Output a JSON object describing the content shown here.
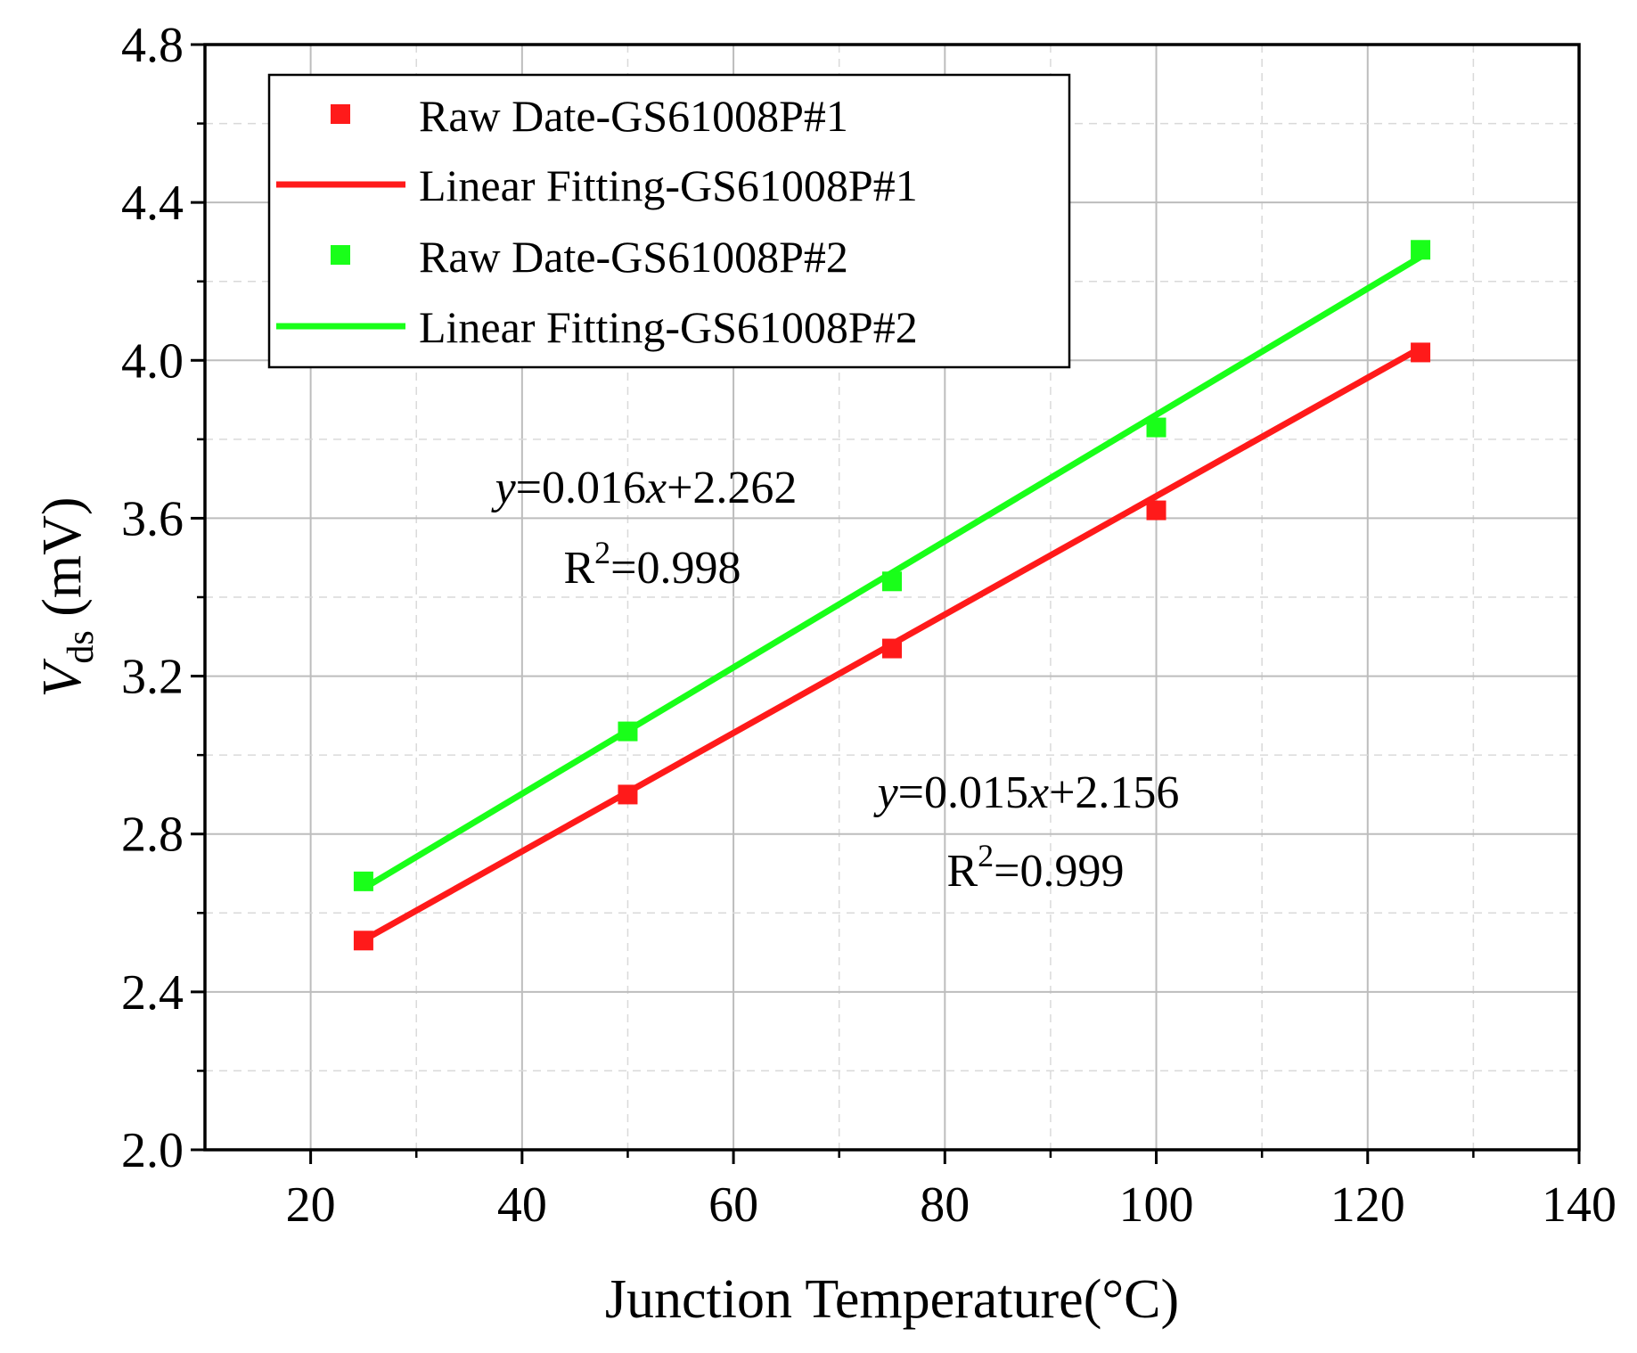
{
  "chart_data": {
    "type": "scatter",
    "title": "",
    "xlabel": "Junction Temperature(°C)",
    "ylabel": {
      "symbol": "V",
      "subscript": "ds",
      "unit": " (mV)"
    },
    "xlim": [
      10,
      140
    ],
    "ylim": [
      2.0,
      4.8
    ],
    "xticks": [
      20,
      40,
      60,
      80,
      100,
      120,
      140
    ],
    "yticks": [
      2.0,
      2.4,
      2.8,
      3.2,
      3.6,
      4.0,
      4.4,
      4.8
    ],
    "xtick_labels": [
      "20",
      "40",
      "60",
      "80",
      "100",
      "120",
      "140"
    ],
    "ytick_labels": [
      "2.0",
      "2.4",
      "2.8",
      "3.2",
      "3.6",
      "4.0",
      "4.4",
      "4.8"
    ],
    "grid": true,
    "legend_position": "top-left",
    "series": [
      {
        "name": "Raw Date-GS61008P#1",
        "kind": "scatter",
        "color": "#ff1a1a",
        "x": [
          25,
          50,
          75,
          100,
          125
        ],
        "y": [
          2.53,
          2.9,
          3.27,
          3.62,
          4.02
        ]
      },
      {
        "name": "Linear Fitting-GS61008P#1",
        "kind": "line",
        "color": "#ff1a1a",
        "x": [
          25,
          125
        ],
        "y": [
          2.531,
          4.031
        ]
      },
      {
        "name": "Raw Date-GS61008P#2",
        "kind": "scatter",
        "color": "#19ff19",
        "x": [
          25,
          50,
          75,
          100,
          125
        ],
        "y": [
          2.68,
          3.06,
          3.44,
          3.83,
          4.28
        ]
      },
      {
        "name": "Linear Fitting-GS61008P#2",
        "kind": "line",
        "color": "#19ff19",
        "x": [
          25,
          125
        ],
        "y": [
          2.662,
          4.262
        ]
      }
    ],
    "annotations": [
      {
        "id": "fit2",
        "y_var": "y",
        "eq_mid": "=0.016",
        "x_var": "x",
        "eq_tail": "+2.262",
        "r_label": "R",
        "r_sup": "2",
        "r_value": "=0.998"
      },
      {
        "id": "fit1",
        "y_var": "y",
        "eq_mid": "=0.015",
        "x_var": "x",
        "eq_tail": "+2.156",
        "r_label": "R",
        "r_sup": "2",
        "r_value": "=0.999"
      }
    ]
  }
}
